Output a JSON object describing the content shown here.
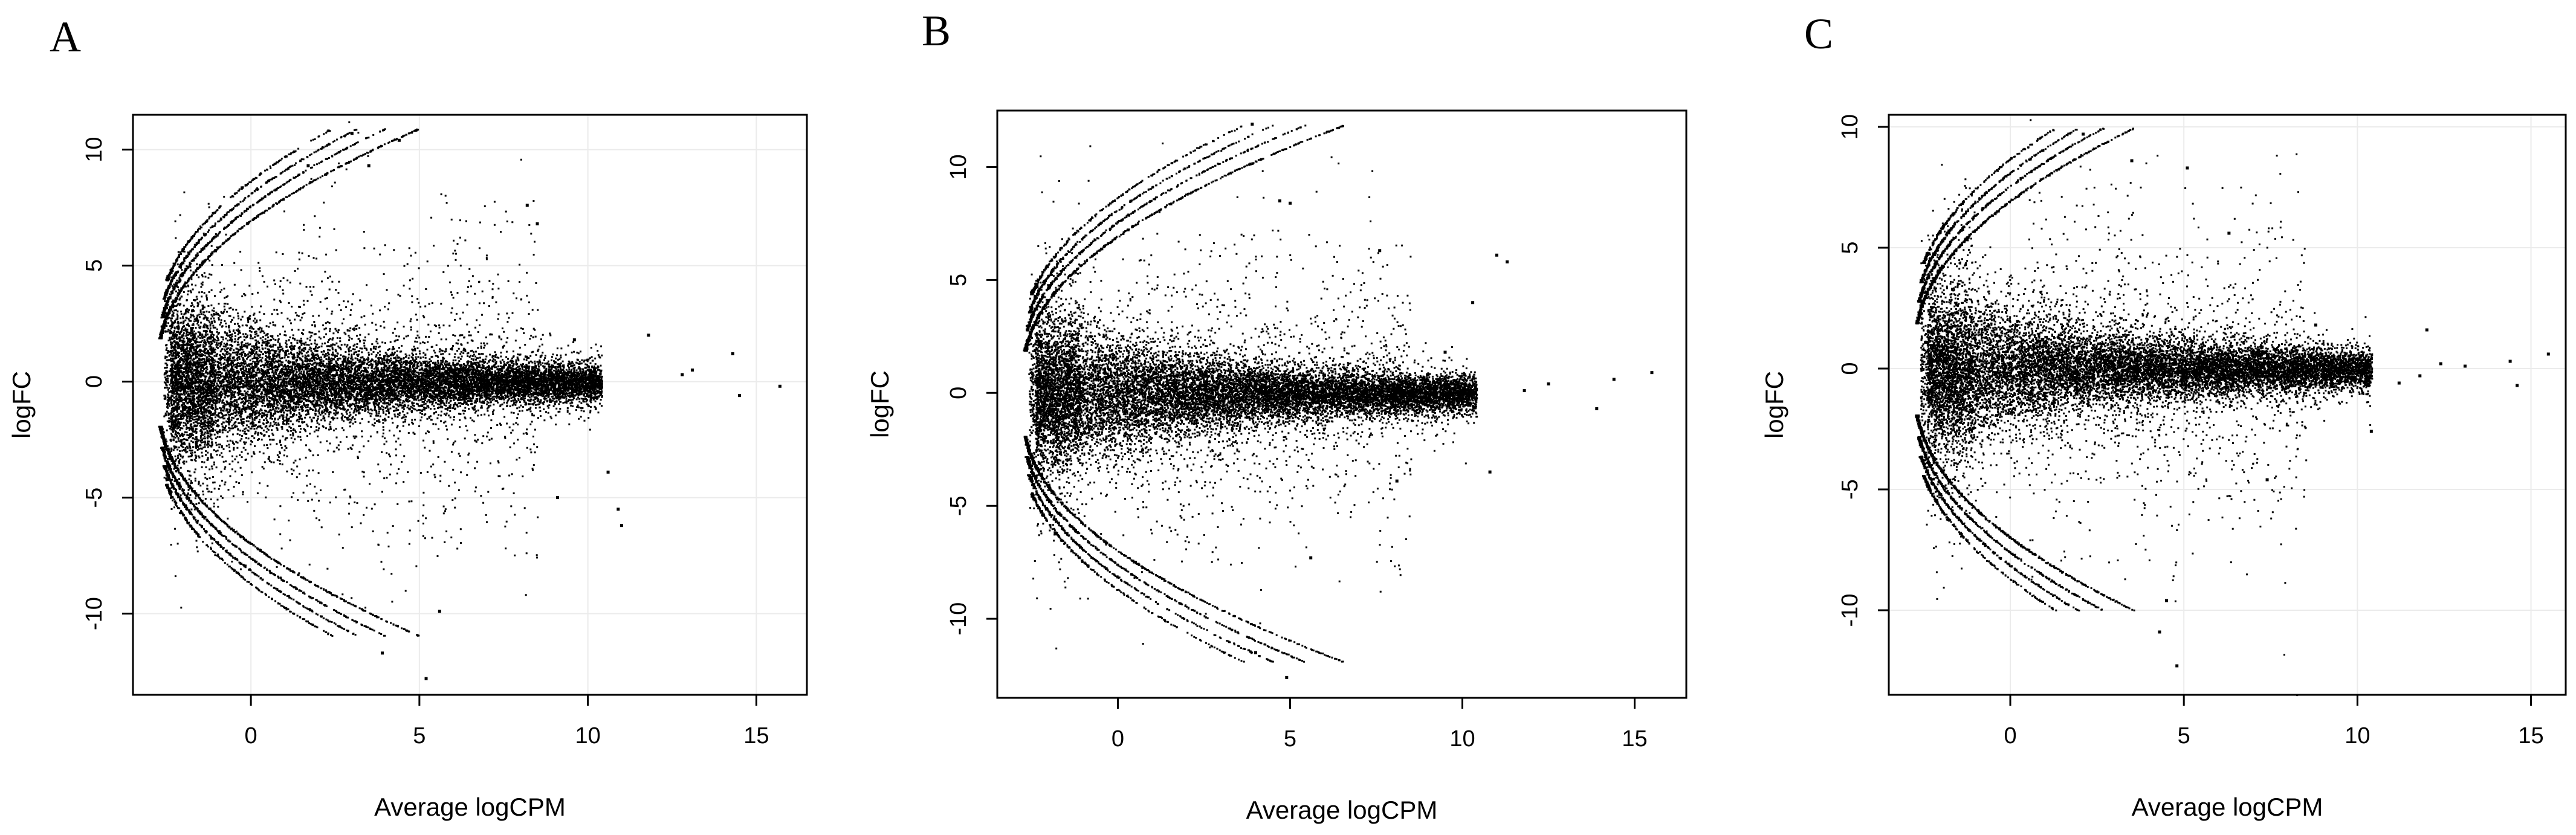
{
  "chart_data": [
    {
      "panel": "A",
      "type": "scatter",
      "xlabel": "Average logCPM",
      "ylabel": "logFC",
      "xlim": [
        -3.5,
        16.5
      ],
      "ylim": [
        -13.5,
        11.5
      ],
      "xticks": [
        0,
        5,
        10,
        15
      ],
      "yticks": [
        -10,
        -5,
        0,
        5,
        10
      ],
      "grid": true,
      "outliers": [
        [
          3.0,
          10.7
        ],
        [
          4.4,
          10.4
        ],
        [
          3.5,
          9.3
        ],
        [
          1.7,
          9.3
        ],
        [
          5.2,
          -12.8
        ],
        [
          3.9,
          -11.7
        ],
        [
          5.6,
          -9.9
        ],
        [
          8.2,
          7.6
        ],
        [
          8.5,
          6.8
        ],
        [
          11.0,
          -6.2
        ],
        [
          14.3,
          1.2
        ],
        [
          15.7,
          -0.2
        ],
        [
          11.8,
          2.0
        ],
        [
          12.8,
          0.3
        ],
        [
          13.1,
          0.5
        ],
        [
          14.5,
          -0.6
        ],
        [
          10.6,
          -3.9
        ],
        [
          10.9,
          -5.5
        ],
        [
          9.1,
          -5.0
        ],
        [
          9.6,
          1.8
        ]
      ]
    },
    {
      "panel": "B",
      "type": "scatter",
      "xlabel": "Average logCPM",
      "ylabel": "logFC",
      "xlim": [
        -3.5,
        16.5
      ],
      "ylim": [
        -13.5,
        12.5
      ],
      "xticks": [
        0,
        5,
        10,
        15
      ],
      "yticks": [
        -10,
        -5,
        0,
        5,
        10
      ],
      "grid": false,
      "outliers": [
        [
          3.9,
          11.9
        ],
        [
          4.9,
          -12.6
        ],
        [
          4.0,
          -11.5
        ],
        [
          15.5,
          0.9
        ],
        [
          14.4,
          0.6
        ],
        [
          13.9,
          -0.7
        ],
        [
          12.5,
          0.4
        ],
        [
          11.0,
          6.1
        ],
        [
          11.3,
          5.8
        ],
        [
          10.3,
          4.0
        ],
        [
          10.8,
          -3.5
        ],
        [
          8.1,
          -3.9
        ],
        [
          4.7,
          8.5
        ],
        [
          5.0,
          8.4
        ],
        [
          5.6,
          -7.3
        ],
        [
          7.6,
          6.3
        ],
        [
          9.5,
          1.8
        ],
        [
          11.8,
          0.1
        ]
      ]
    },
    {
      "panel": "C",
      "type": "scatter",
      "xlabel": "Average logCPM",
      "ylabel": "logFC",
      "xlim": [
        -3.5,
        16.0
      ],
      "ylim": [
        -13.5,
        10.5
      ],
      "xticks": [
        0,
        5,
        10,
        15
      ],
      "yticks": [
        -10,
        -5,
        0,
        5,
        10
      ],
      "grid": true,
      "outliers": [
        [
          2.1,
          9.7
        ],
        [
          5.1,
          8.3
        ],
        [
          3.5,
          8.6
        ],
        [
          4.8,
          -12.3
        ],
        [
          4.3,
          -10.9
        ],
        [
          4.5,
          -9.6
        ],
        [
          15.5,
          0.6
        ],
        [
          14.6,
          -0.7
        ],
        [
          14.4,
          0.3
        ],
        [
          13.1,
          0.1
        ],
        [
          12.0,
          1.6
        ],
        [
          11.8,
          -0.3
        ],
        [
          12.4,
          0.2
        ],
        [
          7.4,
          -4.6
        ],
        [
          6.3,
          5.6
        ],
        [
          8.8,
          1.8
        ],
        [
          10.4,
          -2.6
        ],
        [
          11.2,
          -0.6
        ]
      ]
    }
  ]
}
